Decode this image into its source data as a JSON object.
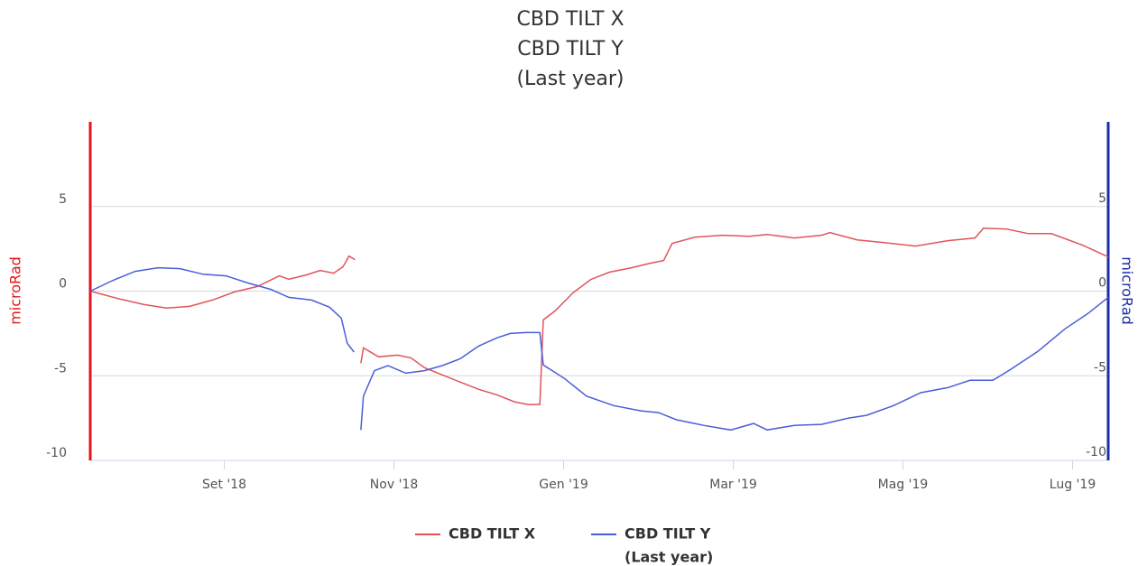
{
  "chart_data": {
    "type": "line",
    "title": [
      "CBD TILT X",
      "CBD TILT Y",
      "(Last year)"
    ],
    "ylabel": "microRad",
    "y2label": "microRad",
    "xlim": [
      0.42,
      12.42
    ],
    "xticks": [
      {
        "value": 2,
        "label": "Set '18"
      },
      {
        "value": 4,
        "label": "Nov '18"
      },
      {
        "value": 6,
        "label": "Gen '19"
      },
      {
        "value": 8,
        "label": "Mar '19"
      },
      {
        "value": 10,
        "label": "Mag '19"
      },
      {
        "value": 12,
        "label": "Lug '19"
      }
    ],
    "ylim": [
      -10,
      10
    ],
    "yticks": [
      -10,
      -5,
      0,
      5
    ],
    "y2lim": [
      -10,
      10
    ],
    "y2ticks": [
      -10,
      -5,
      0,
      5
    ],
    "grid": true,
    "y_axis_color": "#e0161b",
    "y2_axis_color": "#1a2ea8",
    "series": [
      {
        "name": "CBD TILT X",
        "color": "#e0545a",
        "x": [
          0.42,
          0.74,
          1.06,
          1.32,
          1.59,
          1.86,
          2.12,
          2.39,
          2.65,
          2.76,
          2.97,
          3.13,
          3.29,
          3.4,
          3.47,
          3.54,
          3.58,
          3.61,
          3.64,
          3.82,
          4.04,
          4.2,
          4.36,
          4.57,
          4.78,
          5.0,
          5.21,
          5.42,
          5.58,
          5.72,
          5.76,
          5.9,
          6.11,
          6.32,
          6.54,
          6.8,
          7.02,
          7.18,
          7.28,
          7.55,
          7.87,
          8.19,
          8.4,
          8.72,
          9.04,
          9.14,
          9.46,
          9.78,
          10.15,
          10.53,
          10.85,
          10.95,
          11.22,
          11.48,
          11.75,
          12.12,
          12.42
        ],
        "values": [
          0,
          -0.43,
          -0.8,
          -1.0,
          -0.9,
          -0.53,
          -0.05,
          0.27,
          0.9,
          0.7,
          0.96,
          1.22,
          1.06,
          1.44,
          2.07,
          1.86,
          null,
          -4.26,
          -3.35,
          -3.88,
          -3.78,
          -3.94,
          -4.52,
          -4.95,
          -5.37,
          -5.8,
          -6.12,
          -6.54,
          -6.7,
          -6.7,
          -1.7,
          -1.17,
          -0.1,
          0.69,
          1.12,
          1.38,
          1.65,
          1.81,
          2.82,
          3.19,
          3.3,
          3.24,
          3.35,
          3.14,
          3.3,
          3.46,
          3.03,
          2.87,
          2.66,
          2.98,
          3.14,
          3.72,
          3.67,
          3.4,
          3.4,
          2.71,
          2.02
        ]
      },
      {
        "name": [
          "CBD TILT Y",
          "(Last year)"
        ],
        "color": "#4a5ed6",
        "axis": "y2",
        "x": [
          0.42,
          0.69,
          0.95,
          1.22,
          1.48,
          1.75,
          2.02,
          2.28,
          2.55,
          2.76,
          3.03,
          3.24,
          3.38,
          3.45,
          3.53,
          3.57,
          3.61,
          3.64,
          3.77,
          3.93,
          4.14,
          4.36,
          4.57,
          4.78,
          5.0,
          5.21,
          5.37,
          5.55,
          5.72,
          5.76,
          6.01,
          6.27,
          6.59,
          6.91,
          7.12,
          7.33,
          7.65,
          7.97,
          8.24,
          8.4,
          8.72,
          9.04,
          9.36,
          9.57,
          9.89,
          10.21,
          10.53,
          10.79,
          11.06,
          11.27,
          11.59,
          11.91,
          12.18,
          12.42
        ],
        "values": [
          0,
          0.64,
          1.17,
          1.38,
          1.33,
          1.0,
          0.9,
          0.48,
          0.1,
          -0.37,
          -0.53,
          -0.95,
          -1.6,
          -3.08,
          -3.6,
          null,
          -8.2,
          -6.2,
          -4.7,
          -4.4,
          -4.85,
          -4.7,
          -4.4,
          -4.0,
          -3.24,
          -2.77,
          -2.5,
          -2.45,
          -2.45,
          -4.36,
          -5.16,
          -6.2,
          -6.76,
          -7.07,
          -7.18,
          -7.6,
          -7.93,
          -8.2,
          -7.82,
          -8.2,
          -7.93,
          -7.87,
          -7.5,
          -7.34,
          -6.76,
          -6.0,
          -5.7,
          -5.27,
          -5.27,
          -4.63,
          -3.56,
          -2.23,
          -1.33,
          -0.37
        ]
      }
    ]
  }
}
